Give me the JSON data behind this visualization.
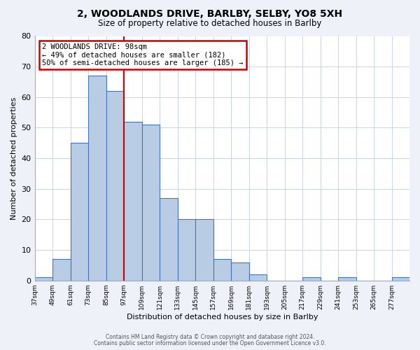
{
  "title": "2, WOODLANDS DRIVE, BARLBY, SELBY, YO8 5XH",
  "subtitle": "Size of property relative to detached houses in Barlby",
  "xlabel": "Distribution of detached houses by size in Barlby",
  "ylabel": "Number of detached properties",
  "bin_labels": [
    "37sqm",
    "49sqm",
    "61sqm",
    "73sqm",
    "85sqm",
    "97sqm",
    "109sqm",
    "121sqm",
    "133sqm",
    "145sqm",
    "157sqm",
    "169sqm",
    "181sqm",
    "193sqm",
    "205sqm",
    "217sqm",
    "229sqm",
    "241sqm",
    "253sqm",
    "265sqm",
    "277sqm"
  ],
  "bar_values": [
    1,
    7,
    45,
    67,
    62,
    52,
    51,
    27,
    20,
    20,
    7,
    6,
    2,
    0,
    0,
    1,
    0,
    1,
    0,
    0,
    1
  ],
  "bar_color": "#b8cce4",
  "bar_edge_color": "#4472c4",
  "vline_index": 5,
  "vline_color": "#cc0000",
  "annotation_text": "2 WOODLANDS DRIVE: 98sqm\n← 49% of detached houses are smaller (182)\n50% of semi-detached houses are larger (185) →",
  "annotation_box_color": "#ffffff",
  "annotation_box_edge": "#cc0000",
  "ylim": [
    0,
    80
  ],
  "yticks": [
    0,
    10,
    20,
    30,
    40,
    50,
    60,
    70,
    80
  ],
  "footnote1": "Contains HM Land Registry data © Crown copyright and database right 2024.",
  "footnote2": "Contains public sector information licensed under the Open Government Licence v3.0.",
  "bg_color": "#eef2f8",
  "plot_bg_color": "#ffffff",
  "grid_color": "#c8d4e8"
}
